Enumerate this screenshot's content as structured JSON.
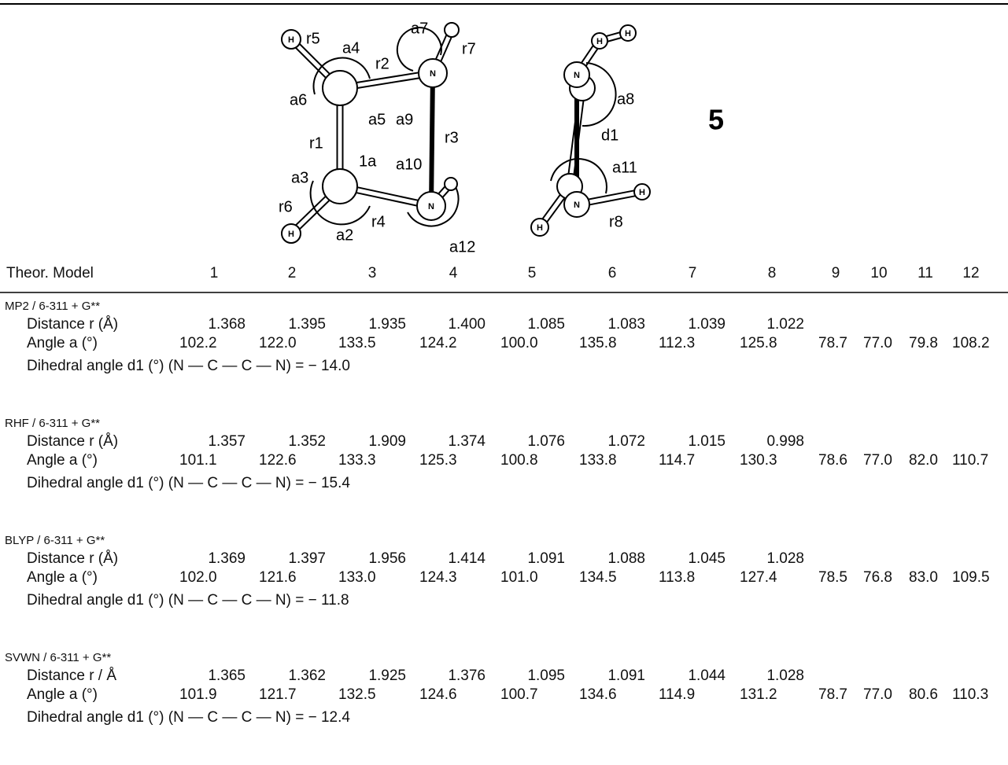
{
  "figure": {
    "label": "5",
    "atoms": [
      "H",
      "N",
      "H",
      "N",
      "H",
      "H",
      "N",
      "N",
      "H",
      "H"
    ],
    "geometry_labels": [
      "r5",
      "a4",
      "r2",
      "a7",
      "r7",
      "a6",
      "a5",
      "a9",
      "r3",
      "r1",
      "1a",
      "a10",
      "a3",
      "r6",
      "a2",
      "r4",
      "a12",
      "a8",
      "d1",
      "a11",
      "r8"
    ]
  },
  "table": {
    "columns": [
      "Theor. Model",
      "1",
      "2",
      "3",
      "4",
      "5",
      "6",
      "7",
      "8",
      "9",
      "10",
      "11",
      "12"
    ],
    "sections": [
      {
        "model": "MP2 / 6-311 + G**",
        "distance_label": "Distance r (Å)",
        "distances": [
          "1.368",
          "1.395",
          "1.935",
          "1.400",
          "1.085",
          "1.083",
          "1.039",
          "1.022"
        ],
        "angle_label": "Angle a (°)",
        "angles": [
          "102.2",
          "122.0",
          "133.5",
          "124.2",
          "100.0",
          "135.8",
          "112.3",
          "125.8",
          "78.7",
          "77.0",
          "79.8",
          "108.2"
        ],
        "dihedral": "Dihedral angle d1 (°) (N — C — C — N) = − 14.0"
      },
      {
        "model": "RHF / 6-311 + G**",
        "distance_label": "Distance r (Å)",
        "distances": [
          "1.357",
          "1.352",
          "1.909",
          "1.374",
          "1.076",
          "1.072",
          "1.015",
          "0.998"
        ],
        "angle_label": "Angle a (°)",
        "angles": [
          "101.1",
          "122.6",
          "133.3",
          "125.3",
          "100.8",
          "133.8",
          "114.7",
          "130.3",
          "78.6",
          "77.0",
          "82.0",
          "110.7"
        ],
        "dihedral": "Dihedral angle d1 (°) (N — C — C — N) = − 15.4"
      },
      {
        "model": "BLYP / 6-311 + G**",
        "distance_label": "Distance r (Å)",
        "distances": [
          "1.369",
          "1.397",
          "1.956",
          "1.414",
          "1.091",
          "1.088",
          "1.045",
          "1.028"
        ],
        "angle_label": "Angle a (°)",
        "angles": [
          "102.0",
          "121.6",
          "133.0",
          "124.3",
          "101.0",
          "134.5",
          "113.8",
          "127.4",
          "78.5",
          "76.8",
          "83.0",
          "109.5"
        ],
        "dihedral": "Dihedral angle d1 (°) (N — C — C — N) = − 11.8"
      },
      {
        "model": "SVWN / 6-311 + G**",
        "distance_label": "Distance r / Å",
        "distances": [
          "1.365",
          "1.362",
          "1.925",
          "1.376",
          "1.095",
          "1.091",
          "1.044",
          "1.028"
        ],
        "angle_label": "Angle a (°)",
        "angles": [
          "101.9",
          "121.7",
          "132.5",
          "124.6",
          "100.7",
          "134.6",
          "114.9",
          "131.2",
          "78.7",
          "77.0",
          "80.6",
          "110.3"
        ],
        "dihedral": "Dihedral angle d1 (°) (N — C — C — N) = − 12.4"
      }
    ]
  }
}
